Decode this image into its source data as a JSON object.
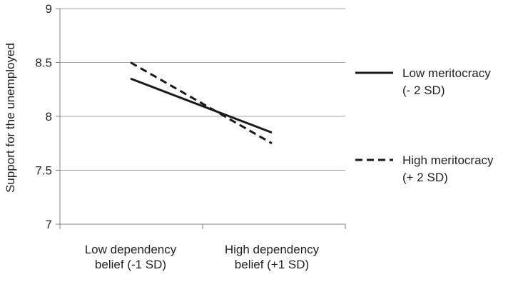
{
  "chart_data": {
    "type": "line",
    "title": "",
    "xlabel": "",
    "ylabel": "Support for the unemployed",
    "ylim": [
      7,
      9
    ],
    "yticks": [
      "7",
      "7.5",
      "8",
      "8.5",
      "9"
    ],
    "grid": true,
    "legend_position": "right",
    "categories": [
      [
        "Low dependency",
        "belief (-1 SD)"
      ],
      [
        "High dependency",
        "belief (+1 SD)"
      ]
    ],
    "series": [
      {
        "name": [
          "Low meritocracy",
          "(- 2 SD)"
        ],
        "values": [
          8.35,
          7.85
        ],
        "line_style": "solid",
        "color": "#1a1a1a"
      },
      {
        "name": [
          "High meritocracy",
          "(+ 2 SD)"
        ],
        "values": [
          8.5,
          7.75
        ],
        "line_style": "dashed",
        "color": "#1a1a1a"
      }
    ],
    "gridline_color": "#a6a6a6",
    "axis_color": "#808080"
  }
}
